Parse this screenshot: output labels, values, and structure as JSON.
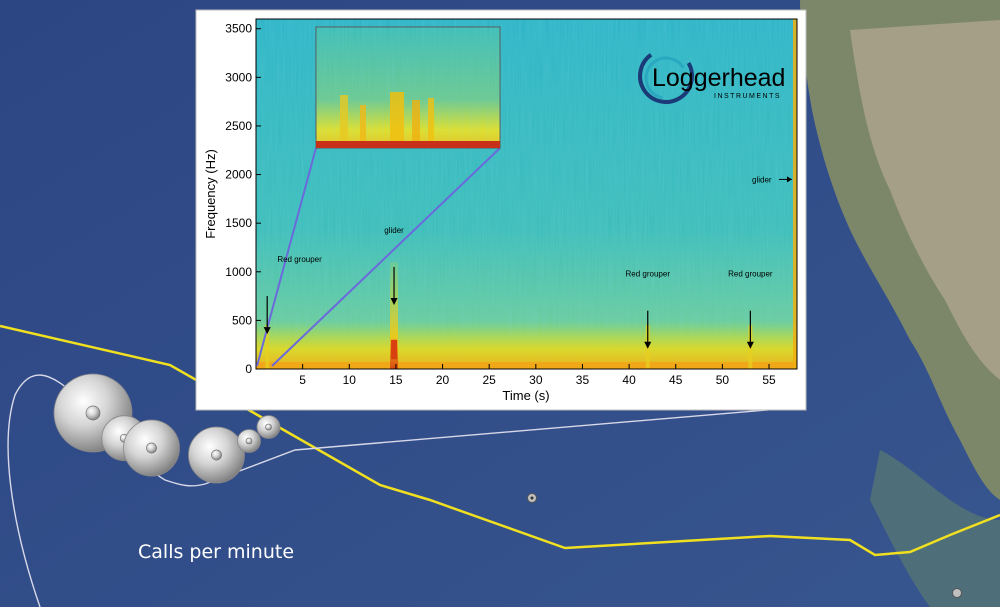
{
  "map": {
    "caption": "Calls per minute",
    "ocean_color": "#2e4a86",
    "track_color": "#f0e020",
    "call_markers": [
      {
        "x_km": 0.0,
        "y_km": 0.0,
        "calls_per_min": 6
      },
      {
        "x_km": 2.4,
        "y_km": 1.8,
        "calls_per_min": 3
      },
      {
        "x_km": 4.5,
        "y_km": 2.5,
        "calls_per_min": 4
      },
      {
        "x_km": 9.5,
        "y_km": 3.0,
        "calls_per_min": 4
      },
      {
        "x_km": 12.0,
        "y_km": 2.0,
        "calls_per_min": 1
      },
      {
        "x_km": 13.5,
        "y_km": 1.0,
        "calls_per_min": 1
      }
    ]
  },
  "logo": {
    "name": "Loggerhead",
    "sub": "INSTRUMENTS"
  },
  "chart_data": {
    "type": "heatmap",
    "title": "",
    "xlabel": "Time (s)",
    "ylabel": "Frequency (Hz)",
    "xlim": [
      0,
      58
    ],
    "ylim": [
      0,
      3600
    ],
    "xticks": [
      5,
      10,
      15,
      20,
      25,
      30,
      35,
      40,
      45,
      50,
      55
    ],
    "yticks": [
      0,
      500,
      1000,
      1500,
      2000,
      2500,
      3000,
      3500
    ],
    "colormap": [
      "#2ab0c8",
      "#5ac8a8",
      "#b8e030",
      "#f0d010",
      "#e03010"
    ],
    "annotations": [
      {
        "text": "Red grouper",
        "time_s": 1.0,
        "freq_hz": 600
      },
      {
        "text": "glider",
        "time_s": 14.8,
        "freq_hz": 900
      },
      {
        "text": "Red grouper",
        "time_s": 42.0,
        "freq_hz": 450
      },
      {
        "text": "Red grouper",
        "time_s": 53.0,
        "freq_hz": 450
      },
      {
        "text": "glider",
        "time_s": 58.0,
        "freq_hz": 1950
      }
    ],
    "events": [
      {
        "label": "Red grouper",
        "time_s": 1.2
      },
      {
        "label": "glider",
        "time_s": 14.8
      },
      {
        "label": "Red grouper",
        "time_s": 42.0
      },
      {
        "label": "Red grouper",
        "time_s": 53.0
      }
    ]
  }
}
